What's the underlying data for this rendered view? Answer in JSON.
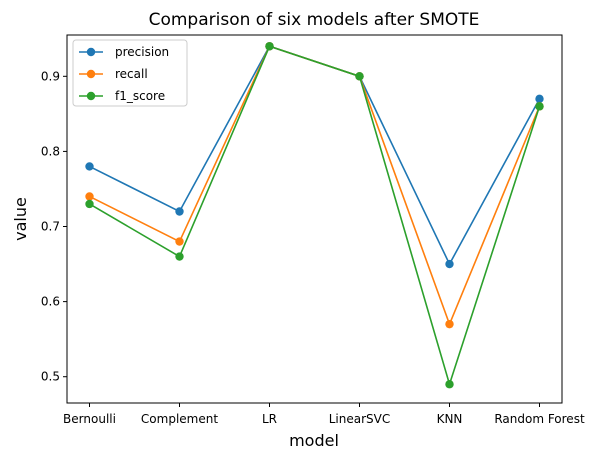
{
  "chart_data": {
    "type": "line",
    "title": "Comparison of six models after SMOTE",
    "xlabel": "model",
    "ylabel": "value",
    "categories": [
      "Bernoulli",
      "Complement",
      "LR",
      "LinearSVC",
      "KNN",
      "Random Forest"
    ],
    "ylim": [
      0.465,
      0.955
    ],
    "yticks": [
      "0.5",
      "0.6",
      "0.7",
      "0.8",
      "0.9"
    ],
    "legend_position": "top-left",
    "grid": false,
    "series": [
      {
        "name": "precision",
        "color": "#1f77b4",
        "values": [
          0.78,
          0.72,
          0.94,
          0.9,
          0.65,
          0.87
        ]
      },
      {
        "name": "recall",
        "color": "#ff7f0e",
        "values": [
          0.74,
          0.68,
          0.94,
          0.9,
          0.57,
          0.86
        ]
      },
      {
        "name": "f1_score",
        "color": "#2ca02c",
        "values": [
          0.73,
          0.66,
          0.94,
          0.9,
          0.49,
          0.86
        ]
      }
    ]
  }
}
